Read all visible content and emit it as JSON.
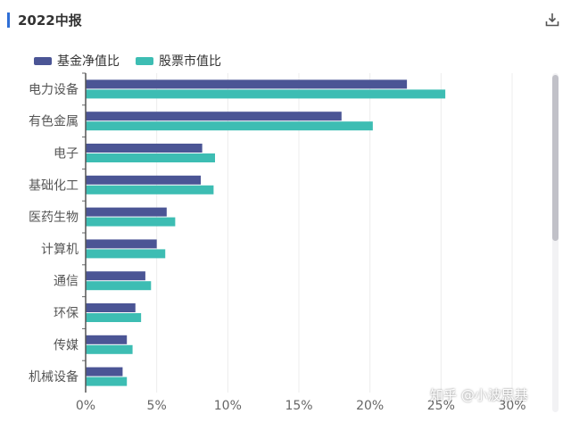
{
  "header": {
    "title": "2022中报"
  },
  "icons": {
    "download": "download-icon"
  },
  "colors": {
    "fund": "#4b5595",
    "market": "#3dbdb3",
    "accent": "#2f6fd6"
  },
  "watermark": "知乎 @小波思基",
  "chart_data": {
    "type": "bar",
    "orientation": "horizontal",
    "title": "2022中报",
    "categories": [
      "电力设备",
      "有色金属",
      "电子",
      "基础化工",
      "医药生物",
      "计算机",
      "通信",
      "环保",
      "传媒",
      "机械设备"
    ],
    "series": [
      {
        "name": "基金净值比",
        "values": [
          22.6,
          18.0,
          8.2,
          8.1,
          5.7,
          5.0,
          4.2,
          3.5,
          2.9,
          2.6
        ]
      },
      {
        "name": "股票市值比",
        "values": [
          25.3,
          20.2,
          9.1,
          9.0,
          6.3,
          5.6,
          4.6,
          3.9,
          3.3,
          2.9
        ]
      }
    ],
    "x_ticks": [
      "0%",
      "5%",
      "10%",
      "15%",
      "20%",
      "25%",
      "30%"
    ],
    "xlim": [
      0,
      30
    ],
    "grid": true,
    "legend": "top-left"
  }
}
